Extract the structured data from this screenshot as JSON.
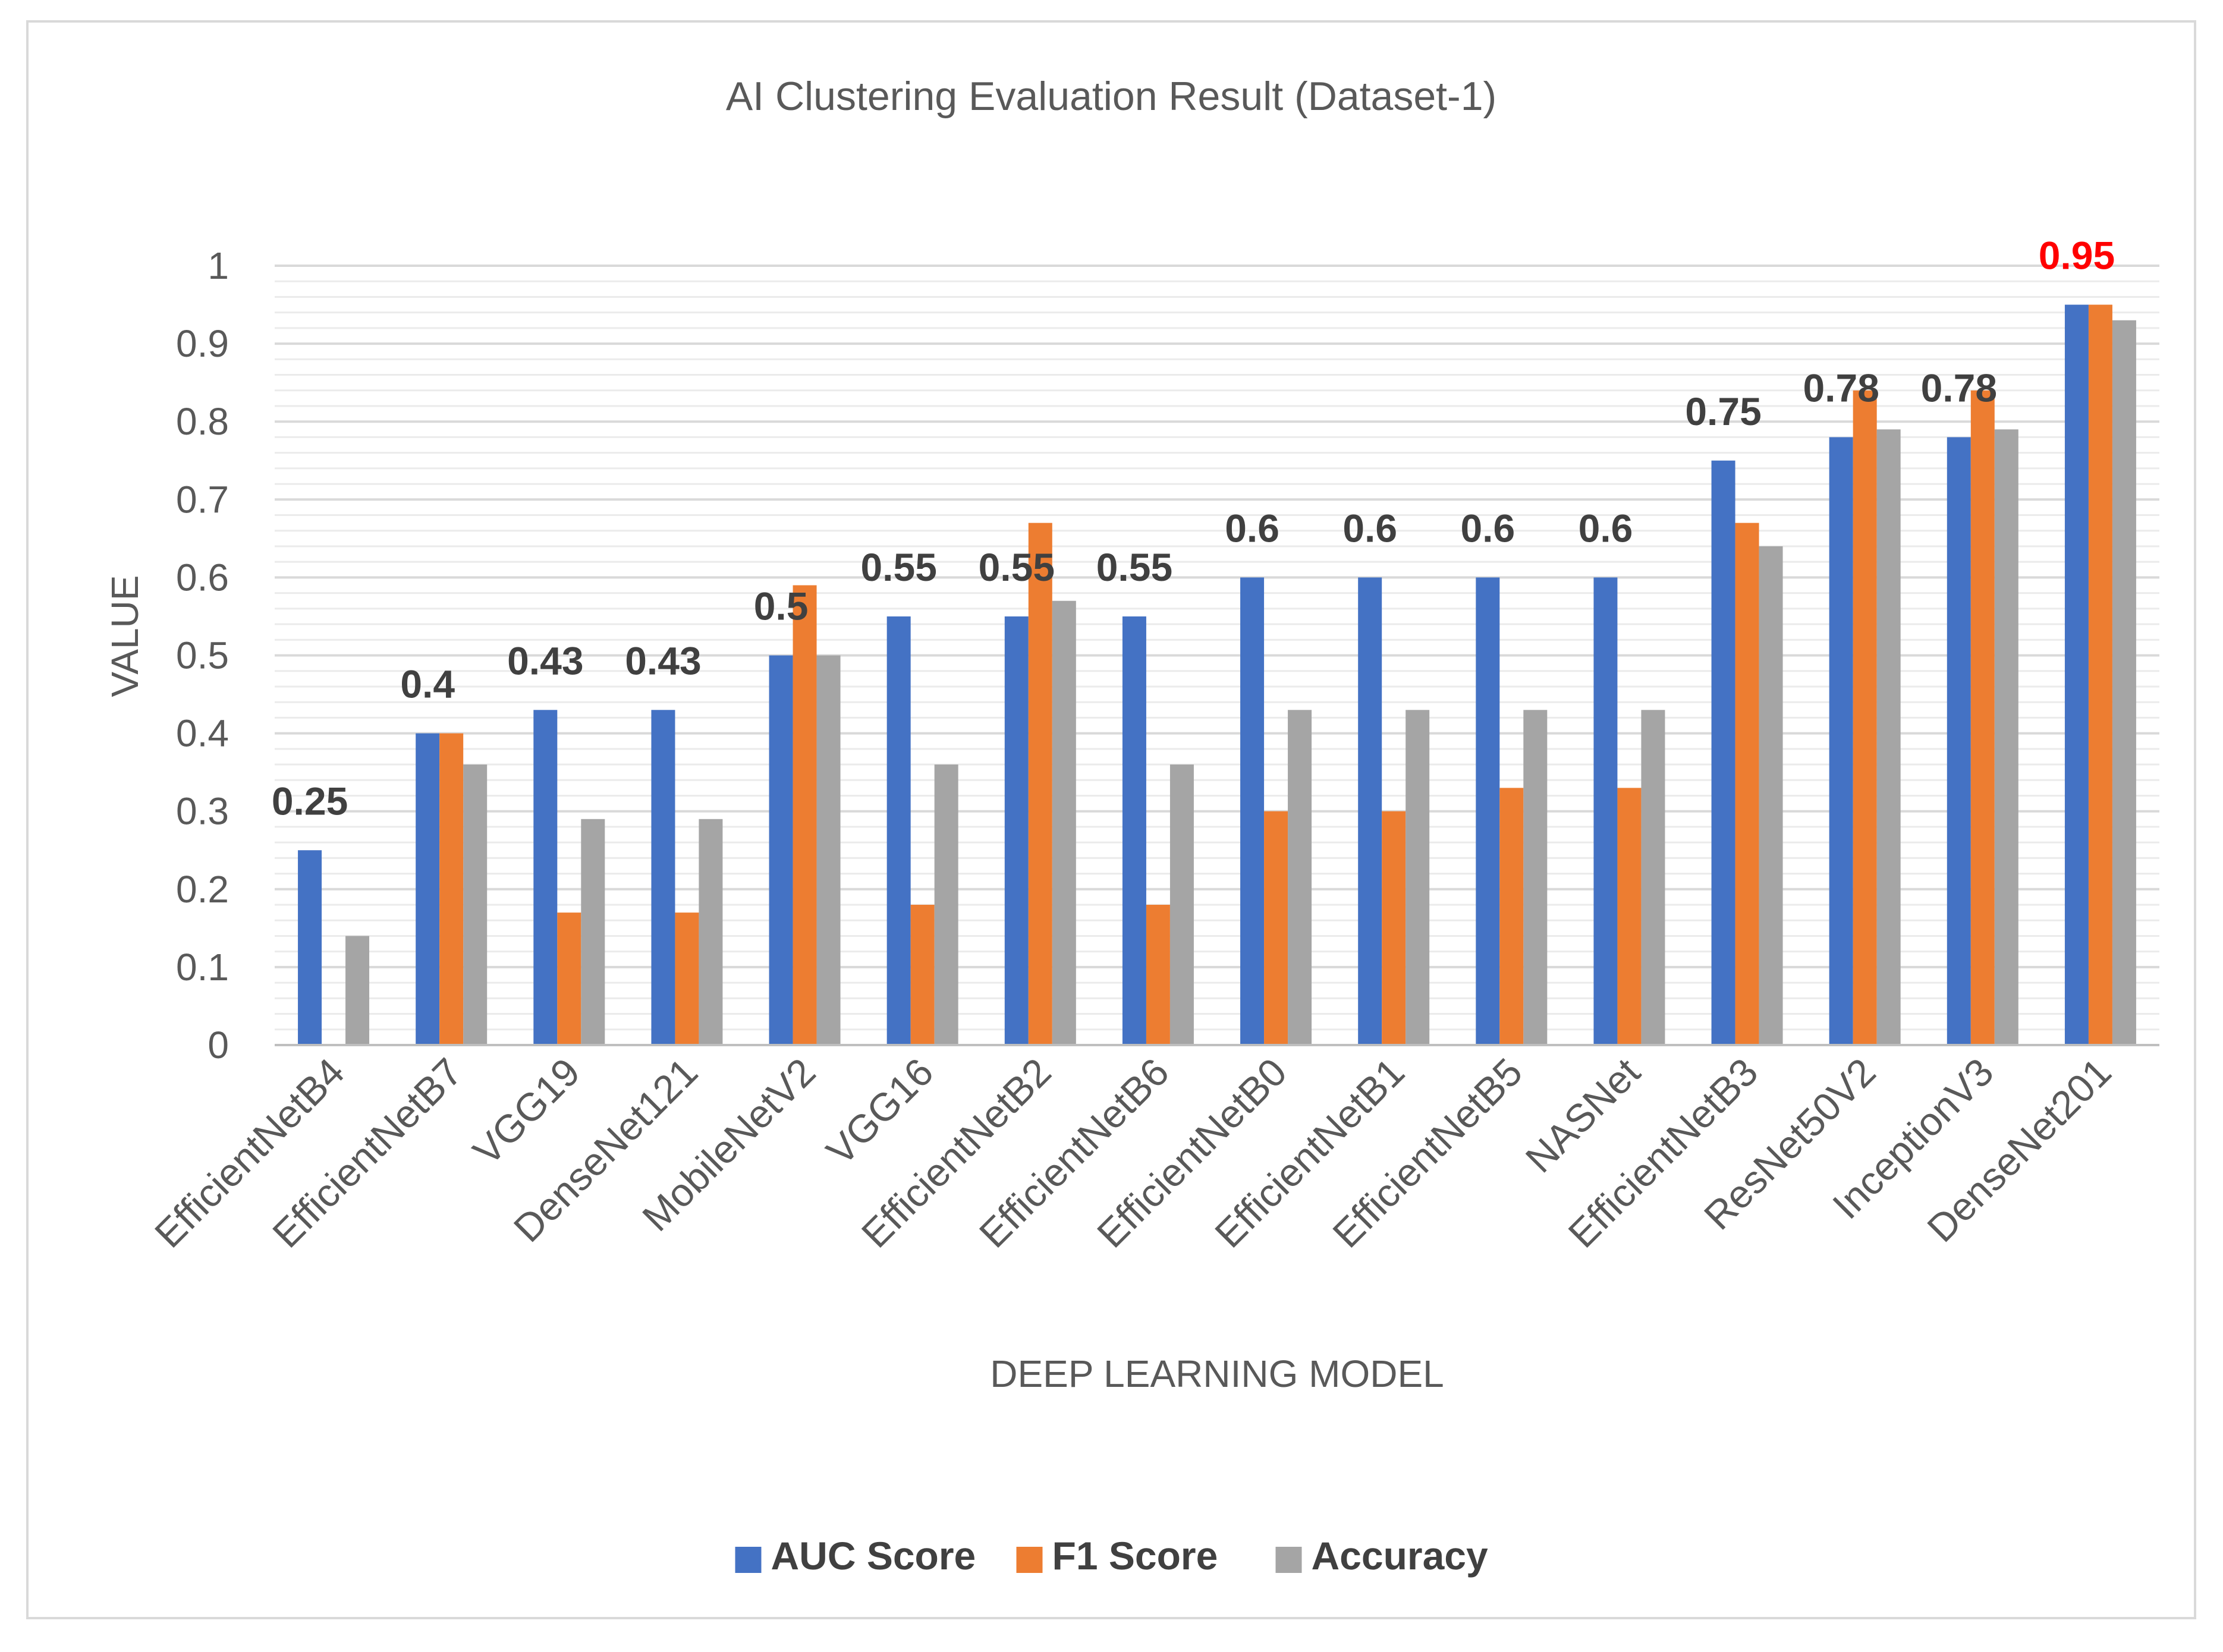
{
  "chart_data": {
    "type": "bar",
    "title": "AI Clustering Evaluation Result (Dataset-1)",
    "xlabel": "DEEP LEARNING MODEL",
    "ylabel": "VALUE",
    "ylim": [
      0,
      1
    ],
    "yticks": [
      "0",
      "0.1",
      "0.2",
      "0.3",
      "0.4",
      "0.5",
      "0.6",
      "0.7",
      "0.8",
      "0.9",
      "1"
    ],
    "categories": [
      "EfficientNetB4",
      "EfficientNetB7",
      "VGG19",
      "DenseNet121",
      "MobileNetV2",
      "VGG16",
      "EfficientNetB2",
      "EfficientNetB6",
      "EfficientNetB0",
      "EfficientNetB1",
      "EfficientNetB5",
      "NASNet",
      "EfficientNetB3",
      "ResNet50V2",
      "InceptionV3",
      "DenseNet201"
    ],
    "series": [
      {
        "name": "AUC Score",
        "color": "#4472c4",
        "values": [
          0.25,
          0.4,
          0.43,
          0.43,
          0.5,
          0.55,
          0.55,
          0.55,
          0.6,
          0.6,
          0.6,
          0.6,
          0.75,
          0.78,
          0.78,
          0.95
        ]
      },
      {
        "name": "F1 Score",
        "color": "#ed7d31",
        "values": [
          0,
          0.4,
          0.17,
          0.17,
          0.59,
          0.18,
          0.67,
          0.18,
          0.3,
          0.3,
          0.33,
          0.33,
          0.67,
          0.84,
          0.84,
          0.95
        ]
      },
      {
        "name": "Accuracy",
        "color": "#a5a5a5",
        "values": [
          0.14,
          0.36,
          0.29,
          0.29,
          0.5,
          0.36,
          0.57,
          0.36,
          0.43,
          0.43,
          0.43,
          0.43,
          0.64,
          0.79,
          0.79,
          0.93
        ]
      }
    ],
    "data_labels": [
      "0.25",
      "0.4",
      "0.43",
      "0.43",
      "0.5",
      "0.55",
      "0.55",
      "0.55",
      "0.6",
      "0.6",
      "0.6",
      "0.6",
      "0.75",
      "0.78",
      "0.78",
      "0.95"
    ],
    "highlight_label_color": "#ff0000",
    "legend_position": "bottom",
    "grid": true
  }
}
